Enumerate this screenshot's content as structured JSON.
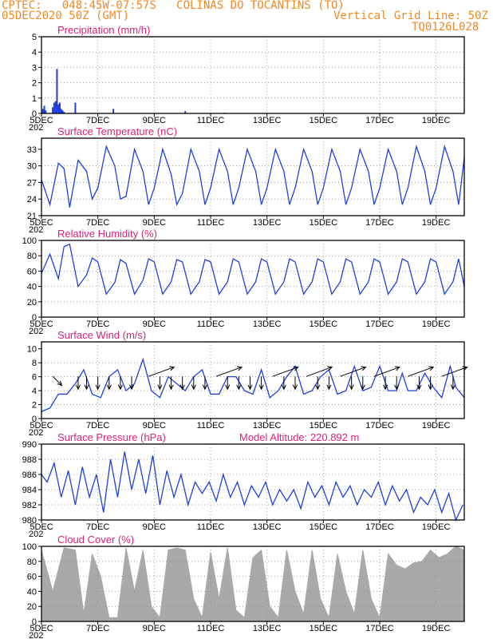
{
  "header": {
    "line1": "CPTEC:   048:45W-07:57S   COLINAS DO TOCANTINS (TO)",
    "line2": "05DEC2020 50Z (GMT)",
    "grid_note": "Vertical Grid Line: 50Z",
    "run_id": "TQ0126L028"
  },
  "x_ticks": [
    "5DEC",
    "7DEC",
    "9DEC",
    "11DEC",
    "13DEC",
    "15DEC",
    "17DEC",
    "19DEC"
  ],
  "x_sub": "202",
  "colors": {
    "header": "#f08a24",
    "title": "#e0207a",
    "line": "#1f3fe0",
    "bar": "#1f3fe0",
    "cloud": "#a9a9a9",
    "grid": "#8a8a8a"
  },
  "chart_data": [
    {
      "id": "precip",
      "type": "bar",
      "title": "Precipitation (mm/h)",
      "ylim": [
        0,
        5
      ],
      "yticks": [
        "0",
        "1",
        "2",
        "3",
        "4",
        "5"
      ],
      "x_unit": "days_after_5DEC",
      "x": [
        0.05,
        0.1,
        0.15,
        0.4,
        0.45,
        0.5,
        0.55,
        0.6,
        0.65,
        0.7,
        0.75,
        0.8,
        1.2,
        2.55,
        5.1,
        6.5
      ],
      "values": [
        0.3,
        0.5,
        0.2,
        0.4,
        0.7,
        0.8,
        2.9,
        0.6,
        0.7,
        0.3,
        0.2,
        0.1,
        0.7,
        0.3,
        0.15,
        0.05
      ],
      "grid": true
    },
    {
      "id": "temp",
      "type": "line",
      "title": "Surface Temperature (nC)",
      "ylim": [
        21,
        35
      ],
      "yticks": [
        "21",
        "24",
        "27",
        "30",
        "33"
      ],
      "x_unit": "days_after_5DEC",
      "x": [
        0,
        0.3,
        0.6,
        0.8,
        1.0,
        1.3,
        1.6,
        1.8,
        2.0,
        2.3,
        2.6,
        2.8,
        3.0,
        3.3,
        3.6,
        3.8,
        4.0,
        4.3,
        4.6,
        4.8,
        5.0,
        5.3,
        5.6,
        5.8,
        6.0,
        6.3,
        6.6,
        6.8,
        7.0,
        7.3,
        7.6,
        7.8,
        8.0,
        8.3,
        8.6,
        8.8,
        9.0,
        9.3,
        9.6,
        9.8,
        10.0,
        10.3,
        10.6,
        10.8,
        11.0,
        11.3,
        11.6,
        11.8,
        12.0,
        12.3,
        12.6,
        12.8,
        13.0,
        13.3,
        13.6,
        13.8,
        14.0,
        14.3,
        14.6,
        14.8,
        15.0
      ],
      "values": [
        27.5,
        23.0,
        30.5,
        29.5,
        22.5,
        31.0,
        29.0,
        24.0,
        26.0,
        33.5,
        30.0,
        24.0,
        24.5,
        33.0,
        29.0,
        23.0,
        26.0,
        33.0,
        28.5,
        23.0,
        25.0,
        33.0,
        29.0,
        23.0,
        26.0,
        33.0,
        29.0,
        23.0,
        26.0,
        33.0,
        29.0,
        23.0,
        26.0,
        33.0,
        29.0,
        23.0,
        26.0,
        33.0,
        29.0,
        23.0,
        26.0,
        33.0,
        29.0,
        23.0,
        26.0,
        33.0,
        29.0,
        23.0,
        26.0,
        33.0,
        29.0,
        23.0,
        26.0,
        33.5,
        29.0,
        23.0,
        26.0,
        33.5,
        29.0,
        23.0,
        31.5
      ],
      "grid": true
    },
    {
      "id": "rh",
      "type": "line",
      "title": "Relative Humidity (%)",
      "ylim": [
        0,
        100
      ],
      "yticks": [
        "0",
        "20",
        "40",
        "60",
        "80",
        "100"
      ],
      "x_unit": "days_after_5DEC",
      "x": [
        0,
        0.3,
        0.6,
        0.8,
        1.0,
        1.3,
        1.6,
        1.8,
        2.0,
        2.3,
        2.6,
        2.8,
        3.0,
        3.3,
        3.6,
        3.8,
        4.0,
        4.3,
        4.6,
        4.8,
        5.0,
        5.3,
        5.6,
        5.8,
        6.0,
        6.3,
        6.6,
        6.8,
        7.0,
        7.3,
        7.6,
        7.8,
        8.0,
        8.3,
        8.6,
        8.8,
        9.0,
        9.3,
        9.6,
        9.8,
        10.0,
        10.3,
        10.6,
        10.8,
        11.0,
        11.3,
        11.6,
        11.8,
        12.0,
        12.3,
        12.6,
        12.8,
        13.0,
        13.3,
        13.6,
        13.8,
        14.0,
        14.3,
        14.6,
        14.8,
        15.0
      ],
      "values": [
        57,
        82,
        50,
        92,
        95,
        40,
        55,
        77,
        72,
        30,
        45,
        75,
        70,
        30,
        48,
        76,
        72,
        30,
        46,
        75,
        72,
        30,
        46,
        75,
        72,
        30,
        46,
        76,
        72,
        30,
        46,
        76,
        72,
        30,
        46,
        76,
        72,
        30,
        46,
        76,
        72,
        30,
        46,
        76,
        72,
        30,
        46,
        76,
        72,
        30,
        46,
        76,
        72,
        30,
        46,
        76,
        72,
        30,
        46,
        76,
        40
      ],
      "grid": true
    },
    {
      "id": "wind",
      "type": "line",
      "title": "Surface Wind (m/s)",
      "ylim": [
        0,
        11
      ],
      "yticks": [
        "0",
        "2",
        "4",
        "6",
        "8",
        "10"
      ],
      "x_unit": "days_after_5DEC",
      "x": [
        0,
        0.3,
        0.6,
        0.9,
        1.2,
        1.5,
        1.8,
        2.1,
        2.4,
        2.7,
        3.0,
        3.3,
        3.6,
        3.9,
        4.2,
        4.5,
        4.8,
        5.1,
        5.4,
        5.7,
        6.0,
        6.3,
        6.6,
        6.9,
        7.2,
        7.5,
        7.8,
        8.1,
        8.4,
        8.7,
        9.0,
        9.3,
        9.6,
        9.9,
        10.2,
        10.5,
        10.8,
        11.1,
        11.4,
        11.7,
        12.0,
        12.3,
        12.6,
        12.8,
        13.0,
        13.3,
        13.6,
        13.9,
        14.2,
        14.5,
        14.7,
        15.0
      ],
      "values": [
        1,
        1.5,
        3.5,
        3.5,
        5,
        7,
        3.5,
        3,
        6,
        7,
        4,
        5,
        8.5,
        4,
        3,
        6,
        5,
        4,
        6,
        7,
        3.5,
        3.5,
        6,
        6,
        4,
        3.5,
        7,
        3,
        4,
        6,
        7.5,
        3.5,
        4,
        6,
        7,
        3.5,
        4,
        7.5,
        4,
        4.5,
        7.5,
        4,
        4,
        6.5,
        4,
        4,
        6.5,
        4.5,
        3,
        7.5,
        4.5,
        3
      ],
      "barbs_x": [
        0.4,
        1.3,
        1.6,
        2.0,
        2.4,
        2.8,
        3.2,
        3.8,
        4.2,
        4.6,
        5.0,
        5.4,
        5.8,
        6.2,
        6.6,
        7.0,
        7.4,
        7.8,
        8.2,
        8.6,
        9.0,
        9.4,
        9.8,
        10.2,
        10.6,
        11.0,
        11.4,
        11.8,
        12.2,
        12.6,
        13.0,
        13.4,
        13.8,
        14.2,
        14.6
      ],
      "barbs_dir": [
        135,
        90,
        90,
        90,
        90,
        90,
        90,
        200,
        90,
        90,
        90,
        90,
        90,
        200,
        90,
        90,
        90,
        90,
        200,
        90,
        90,
        200,
        90,
        90,
        200,
        90,
        90,
        200,
        90,
        90,
        200,
        90,
        90,
        200,
        90
      ],
      "grid": true
    },
    {
      "id": "pres",
      "type": "line",
      "title": "Surface Pressure (hPa)",
      "annotation": "Model Altitude: 220.892 m",
      "ylim": [
        980,
        990
      ],
      "yticks": [
        "980",
        "982",
        "984",
        "986",
        "988",
        "990"
      ],
      "x_unit": "days_after_5DEC",
      "x": [
        0,
        0.2,
        0.45,
        0.7,
        0.95,
        1.2,
        1.45,
        1.7,
        1.95,
        2.2,
        2.45,
        2.7,
        2.95,
        3.2,
        3.45,
        3.7,
        3.95,
        4.2,
        4.45,
        4.7,
        4.95,
        5.2,
        5.45,
        5.7,
        5.95,
        6.2,
        6.45,
        6.7,
        6.95,
        7.2,
        7.45,
        7.7,
        7.95,
        8.2,
        8.45,
        8.7,
        8.95,
        9.2,
        9.45,
        9.7,
        9.95,
        10.2,
        10.45,
        10.7,
        10.95,
        11.2,
        11.45,
        11.7,
        11.95,
        12.2,
        12.45,
        12.7,
        12.95,
        13.2,
        13.45,
        13.7,
        13.95,
        14.2,
        14.45,
        14.7,
        14.95
      ],
      "values": [
        986,
        985,
        987.5,
        983,
        986.5,
        982,
        987,
        983,
        986,
        981,
        988,
        983,
        989,
        984,
        988,
        983.5,
        988.5,
        982,
        986.5,
        983,
        986,
        982,
        985,
        983.5,
        985,
        982.5,
        986,
        983,
        985,
        982,
        984.5,
        983,
        985,
        982,
        984,
        982.5,
        984,
        981.5,
        985,
        983,
        984.5,
        982,
        985,
        983,
        984.5,
        982,
        984,
        983,
        985,
        982,
        984.5,
        982.5,
        984,
        981,
        983,
        982,
        984,
        981,
        983.5,
        980,
        982
      ],
      "grid": true
    },
    {
      "id": "cloud",
      "type": "area",
      "title": "Cloud Cover (%)",
      "ylim": [
        0,
        100
      ],
      "yticks": [
        "0",
        "20",
        "40",
        "60",
        "80",
        "100"
      ],
      "x_unit": "days_after_5DEC",
      "x": [
        0,
        0.4,
        0.8,
        1.2,
        1.5,
        1.8,
        2.1,
        2.4,
        2.7,
        3.0,
        3.3,
        3.6,
        3.9,
        4.2,
        4.5,
        4.8,
        5.1,
        5.4,
        5.7,
        6.0,
        6.3,
        6.6,
        6.9,
        7.2,
        7.5,
        7.8,
        8.1,
        8.4,
        8.7,
        9.0,
        9.3,
        9.6,
        9.9,
        10.2,
        10.5,
        10.8,
        11.1,
        11.4,
        11.7,
        12.0,
        12.3,
        12.6,
        12.9,
        13.2,
        13.5,
        13.8,
        14.1,
        14.4,
        14.7,
        15.0
      ],
      "values": [
        95,
        40,
        98,
        95,
        10,
        90,
        60,
        5,
        5,
        98,
        40,
        95,
        20,
        5,
        95,
        98,
        95,
        30,
        5,
        92,
        30,
        98,
        15,
        5,
        85,
        95,
        20,
        5,
        95,
        40,
        10,
        95,
        30,
        5,
        90,
        40,
        10,
        95,
        30,
        5,
        90,
        75,
        70,
        78,
        80,
        95,
        85,
        90,
        100,
        95
      ],
      "grid": true
    }
  ]
}
